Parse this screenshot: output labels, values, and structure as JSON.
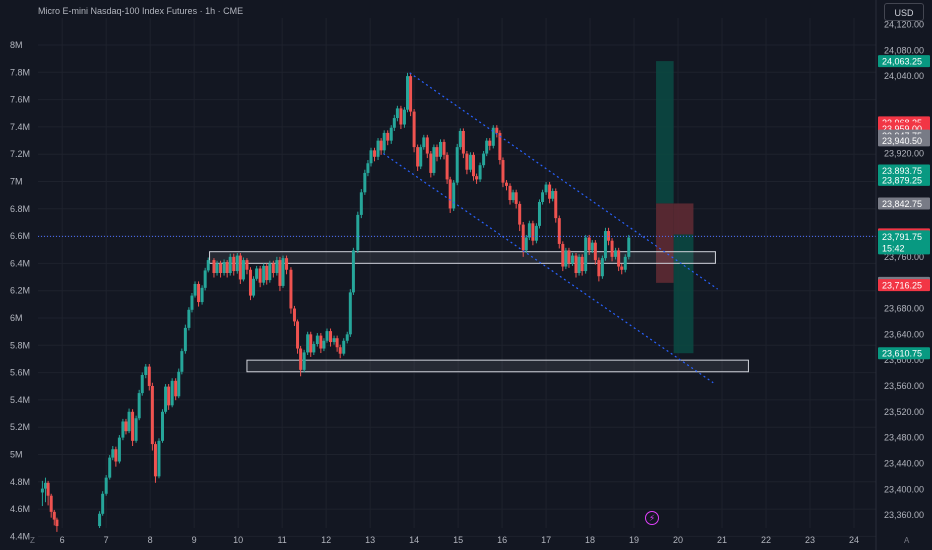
{
  "header": {
    "title": "Micro E-mini Nasdaq-100 Index Futures · 1h · CME",
    "currency": "USD",
    "corner_left": "Z",
    "corner_right": "A"
  },
  "colors": {
    "background": "#131722",
    "grid": "#1e222d",
    "up": "#26a69a",
    "down": "#ef5350",
    "channel": "#2962ff",
    "zone_border": "#d1d4dc",
    "label_green": "#089981",
    "label_red": "#f23645",
    "label_gray": "#787b86",
    "last_price_line": "#4c6fff"
  },
  "chart_data": {
    "type": "candlestick",
    "title": "Micro E-mini Nasdaq-100 Index Futures · 1h · CME",
    "x_ticks": [
      "6",
      "7",
      "8",
      "9",
      "10",
      "11",
      "12",
      "13",
      "14",
      "15",
      "16",
      "17",
      "18",
      "19",
      "20",
      "21",
      "22",
      "23",
      "24"
    ],
    "x_range": [
      5.45,
      24.5
    ],
    "left_axis_ticks": [
      "8M",
      "7.8M",
      "7.6M",
      "7.4M",
      "7.2M",
      "7M",
      "6.8M",
      "6.6M",
      "6.4M",
      "6.2M",
      "6M",
      "5.8M",
      "5.6M",
      "5.4M",
      "5.2M",
      "5M",
      "4.8M",
      "4.6M",
      "4.4M"
    ],
    "price_axis_ticks": [
      "24,120.00",
      "24,080.00",
      "24,040.00",
      "23,920.00",
      "23,760.00",
      "23,680.00",
      "23,640.00",
      "23,600.00",
      "23,560.00",
      "23,520.00",
      "23,480.00",
      "23,440.00",
      "23,400.00",
      "23,360.00"
    ],
    "price_range": [
      23340,
      24130
    ],
    "price_labels": [
      {
        "text": "24,063.25",
        "price": 24063.25,
        "kind": "green"
      },
      {
        "text": "23,968.25",
        "price": 23968.25,
        "kind": "red"
      },
      {
        "text": "23,959.00",
        "price": 23959.0,
        "kind": "red"
      },
      {
        "text": "23,947.75",
        "price": 23947.75,
        "kind": "gray"
      },
      {
        "text": "23,940.50",
        "price": 23940.5,
        "kind": "gray"
      },
      {
        "text": "23,893.75",
        "price": 23893.75,
        "kind": "green"
      },
      {
        "text": "23,879.25",
        "price": 23879.25,
        "kind": "green"
      },
      {
        "text": "23,842.75",
        "price": 23842.75,
        "kind": "gray"
      },
      {
        "text": "23,794.75",
        "price": 23794.75,
        "kind": "red"
      },
      {
        "text": "23,791.75",
        "price": 23791.75,
        "kind": "green",
        "sub": "15:42"
      },
      {
        "text": "23,719.75",
        "price": 23719.75,
        "kind": "gray"
      },
      {
        "text": "23,716.25",
        "price": 23716.25,
        "kind": "red"
      },
      {
        "text": "23,610.75",
        "price": 23610.75,
        "kind": "green"
      }
    ],
    "candles": [
      [
        5.55,
        23395,
        23401,
        23374,
        23413
      ],
      [
        5.62,
        23401,
        23410,
        23380,
        23418
      ],
      [
        5.68,
        23410,
        23390,
        23375,
        23413
      ],
      [
        5.75,
        23390,
        23365,
        23356,
        23393
      ],
      [
        5.82,
        23365,
        23353,
        23344,
        23368
      ],
      [
        5.88,
        23353,
        23343,
        23334,
        23356
      ],
      [
        6.85,
        23343,
        23362,
        23340,
        23366
      ],
      [
        6.92,
        23362,
        23393,
        23359,
        23397
      ],
      [
        7.0,
        23393,
        23418,
        23390,
        23422
      ],
      [
        7.08,
        23418,
        23449,
        23415,
        23453
      ],
      [
        7.15,
        23449,
        23462,
        23445,
        23467
      ],
      [
        7.22,
        23462,
        23443,
        23435,
        23466
      ],
      [
        7.3,
        23443,
        23480,
        23440,
        23484
      ],
      [
        7.38,
        23480,
        23505,
        23476,
        23509
      ],
      [
        7.45,
        23505,
        23490,
        23485,
        23509
      ],
      [
        7.52,
        23490,
        23520,
        23487,
        23525
      ],
      [
        7.6,
        23520,
        23475,
        23467,
        23524
      ],
      [
        7.68,
        23475,
        23510,
        23472,
        23514
      ],
      [
        7.75,
        23510,
        23549,
        23507,
        23554
      ],
      [
        7.82,
        23549,
        23577,
        23545,
        23581
      ],
      [
        7.9,
        23577,
        23590,
        23572,
        23594
      ],
      [
        7.98,
        23590,
        23560,
        23553,
        23594
      ],
      [
        8.05,
        23560,
        23470,
        23460,
        23565
      ],
      [
        8.12,
        23470,
        23420,
        23410,
        23474
      ],
      [
        8.2,
        23420,
        23475,
        23417,
        23479
      ],
      [
        8.28,
        23475,
        23520,
        23472,
        23524
      ],
      [
        8.35,
        23520,
        23559,
        23517,
        23563
      ],
      [
        8.42,
        23559,
        23530,
        23523,
        23563
      ],
      [
        8.5,
        23530,
        23568,
        23527,
        23572
      ],
      [
        8.58,
        23568,
        23544,
        23538,
        23572
      ],
      [
        8.65,
        23544,
        23582,
        23541,
        23587
      ],
      [
        8.72,
        23582,
        23614,
        23578,
        23618
      ],
      [
        8.8,
        23614,
        23650,
        23610,
        23655
      ],
      [
        8.88,
        23650,
        23678,
        23646,
        23682
      ],
      [
        8.95,
        23678,
        23700,
        23674,
        23704
      ],
      [
        9.02,
        23700,
        23718,
        23697,
        23722
      ],
      [
        9.1,
        23718,
        23690,
        23683,
        23722
      ],
      [
        9.18,
        23690,
        23712,
        23686,
        23716
      ],
      [
        9.25,
        23712,
        23739,
        23708,
        23743
      ],
      [
        9.32,
        23739,
        23755,
        23736,
        23759
      ],
      [
        9.45,
        23755,
        23735,
        23728,
        23758
      ],
      [
        9.52,
        23735,
        23750,
        23731,
        23754
      ],
      [
        9.6,
        23750,
        23735,
        23728,
        23754
      ],
      [
        9.68,
        23735,
        23752,
        23731,
        23756
      ],
      [
        9.75,
        23752,
        23735,
        23728,
        23755
      ],
      [
        9.82,
        23735,
        23760,
        23731,
        23765
      ],
      [
        9.9,
        23760,
        23738,
        23731,
        23765
      ],
      [
        9.98,
        23738,
        23762,
        23734,
        23766
      ],
      [
        10.05,
        23762,
        23725,
        23718,
        23766
      ],
      [
        10.12,
        23725,
        23755,
        23722,
        23759
      ],
      [
        10.2,
        23755,
        23740,
        23733,
        23758
      ],
      [
        10.28,
        23740,
        23700,
        23693,
        23744
      ],
      [
        10.35,
        23700,
        23726,
        23697,
        23730
      ],
      [
        10.42,
        23726,
        23742,
        23723,
        23746
      ],
      [
        10.5,
        23742,
        23720,
        23713,
        23746
      ],
      [
        10.58,
        23720,
        23746,
        23716,
        23750
      ],
      [
        10.65,
        23746,
        23724,
        23717,
        23750
      ],
      [
        10.72,
        23724,
        23750,
        23720,
        23754
      ],
      [
        10.8,
        23750,
        23735,
        23728,
        23754
      ],
      [
        10.88,
        23735,
        23755,
        23731,
        23760
      ],
      [
        10.95,
        23755,
        23715,
        23707,
        23760
      ],
      [
        11.02,
        23715,
        23758,
        23712,
        23762
      ],
      [
        11.1,
        23758,
        23740,
        23733,
        23762
      ],
      [
        11.2,
        23740,
        23680,
        23672,
        23744
      ],
      [
        11.28,
        23680,
        23660,
        23653,
        23684
      ],
      [
        11.35,
        23660,
        23618,
        23610,
        23663
      ],
      [
        11.42,
        23618,
        23585,
        23575,
        23622
      ],
      [
        11.5,
        23585,
        23612,
        23581,
        23616
      ],
      [
        11.58,
        23612,
        23640,
        23608,
        23644
      ],
      [
        11.65,
        23640,
        23612,
        23605,
        23644
      ],
      [
        11.72,
        23612,
        23625,
        23608,
        23629
      ],
      [
        11.8,
        23625,
        23638,
        23621,
        23642
      ],
      [
        11.88,
        23638,
        23618,
        23611,
        23642
      ],
      [
        11.95,
        23618,
        23630,
        23614,
        23634
      ],
      [
        12.02,
        23630,
        23645,
        23627,
        23649
      ],
      [
        12.1,
        23645,
        23628,
        23621,
        23649
      ],
      [
        12.18,
        23628,
        23634,
        23624,
        23638
      ],
      [
        12.25,
        23634,
        23620,
        23613,
        23638
      ],
      [
        12.32,
        23620,
        23610,
        23603,
        23624
      ],
      [
        12.4,
        23610,
        23630,
        23607,
        23634
      ],
      [
        12.48,
        23630,
        23640,
        23626,
        23644
      ],
      [
        12.55,
        23640,
        23705,
        23636,
        23710
      ],
      [
        12.62,
        23705,
        23770,
        23701,
        23774
      ],
      [
        12.72,
        23770,
        23825,
        23766,
        23830
      ],
      [
        12.8,
        23825,
        23860,
        23820,
        23865
      ],
      [
        12.88,
        23860,
        23890,
        23856,
        23895
      ],
      [
        12.95,
        23890,
        23905,
        23885,
        23910
      ],
      [
        13.02,
        23905,
        23925,
        23900,
        23929
      ],
      [
        13.1,
        23925,
        23915,
        23908,
        23929
      ],
      [
        13.18,
        23915,
        23940,
        23910,
        23944
      ],
      [
        13.25,
        23940,
        23925,
        23918,
        23944
      ],
      [
        13.32,
        23925,
        23952,
        23920,
        23956
      ],
      [
        13.4,
        23952,
        23940,
        23933,
        23956
      ],
      [
        13.48,
        23940,
        23960,
        23935,
        23964
      ],
      [
        13.55,
        23960,
        23975,
        23955,
        23980
      ],
      [
        13.62,
        23975,
        23990,
        23970,
        23994
      ],
      [
        13.7,
        23990,
        23965,
        23958,
        23994
      ],
      [
        13.78,
        23965,
        23988,
        23960,
        23992
      ],
      [
        13.85,
        23988,
        24040,
        23984,
        24045
      ],
      [
        13.92,
        24040,
        23985,
        23978,
        24045
      ],
      [
        14.0,
        23985,
        23930,
        23922,
        23989
      ],
      [
        14.08,
        23930,
        23900,
        23893,
        23934
      ],
      [
        14.15,
        23900,
        23930,
        23896,
        23934
      ],
      [
        14.22,
        23930,
        23945,
        23926,
        23949
      ],
      [
        14.3,
        23945,
        23920,
        23913,
        23949
      ],
      [
        14.38,
        23920,
        23890,
        23883,
        23924
      ],
      [
        14.45,
        23890,
        23930,
        23886,
        23934
      ],
      [
        14.52,
        23930,
        23915,
        23908,
        23934
      ],
      [
        14.6,
        23915,
        23938,
        23911,
        23942
      ],
      [
        14.68,
        23938,
        23918,
        23911,
        23942
      ],
      [
        14.75,
        23918,
        23880,
        23873,
        23922
      ],
      [
        14.82,
        23880,
        23835,
        23828,
        23884
      ],
      [
        14.9,
        23835,
        23875,
        23831,
        23879
      ],
      [
        14.98,
        23875,
        23930,
        23871,
        23935
      ],
      [
        15.05,
        23930,
        23955,
        23926,
        23959
      ],
      [
        15.12,
        23955,
        23920,
        23913,
        23959
      ],
      [
        15.2,
        23920,
        23895,
        23888,
        23924
      ],
      [
        15.28,
        23895,
        23918,
        23891,
        23922
      ],
      [
        15.35,
        23918,
        23885,
        23878,
        23922
      ],
      [
        15.42,
        23885,
        23880,
        23873,
        23889
      ],
      [
        15.5,
        23880,
        23902,
        23876,
        23906
      ],
      [
        15.58,
        23902,
        23920,
        23898,
        23924
      ],
      [
        15.65,
        23920,
        23940,
        23916,
        23944
      ],
      [
        15.72,
        23940,
        23932,
        23925,
        23944
      ],
      [
        15.8,
        23932,
        23960,
        23928,
        23964
      ],
      [
        15.88,
        23960,
        23952,
        23945,
        23964
      ],
      [
        15.95,
        23952,
        23910,
        23903,
        23956
      ],
      [
        16.02,
        23910,
        23875,
        23868,
        23914
      ],
      [
        16.1,
        23875,
        23870,
        23863,
        23879
      ],
      [
        16.18,
        23870,
        23848,
        23841,
        23874
      ],
      [
        16.25,
        23848,
        23860,
        23844,
        23864
      ],
      [
        16.32,
        23860,
        23842,
        23835,
        23864
      ],
      [
        16.4,
        23842,
        23810,
        23800,
        23846
      ],
      [
        16.48,
        23810,
        23770,
        23760,
        23814
      ],
      [
        16.55,
        23770,
        23790,
        23766,
        23794
      ],
      [
        16.62,
        23790,
        23812,
        23786,
        23816
      ],
      [
        16.7,
        23812,
        23785,
        23778,
        23816
      ],
      [
        16.78,
        23785,
        23808,
        23781,
        23812
      ],
      [
        16.85,
        23808,
        23845,
        23804,
        23849
      ],
      [
        16.92,
        23845,
        23860,
        23841,
        23864
      ],
      [
        17.0,
        23860,
        23872,
        23856,
        23876
      ],
      [
        17.08,
        23872,
        23850,
        23843,
        23876
      ],
      [
        17.15,
        23850,
        23862,
        23846,
        23866
      ],
      [
        17.22,
        23862,
        23820,
        23813,
        23866
      ],
      [
        17.3,
        23820,
        23780,
        23773,
        23824
      ],
      [
        17.38,
        23780,
        23745,
        23738,
        23784
      ],
      [
        17.45,
        23745,
        23770,
        23741,
        23774
      ],
      [
        17.52,
        23770,
        23750,
        23743,
        23774
      ],
      [
        17.6,
        23750,
        23762,
        23746,
        23766
      ],
      [
        17.68,
        23762,
        23735,
        23728,
        23766
      ],
      [
        17.75,
        23735,
        23760,
        23731,
        23764
      ],
      [
        17.82,
        23760,
        23738,
        23731,
        23764
      ],
      [
        17.9,
        23738,
        23790,
        23734,
        23794
      ],
      [
        17.98,
        23790,
        23770,
        23763,
        23794
      ],
      [
        18.05,
        23770,
        23782,
        23766,
        23786
      ],
      [
        18.12,
        23782,
        23755,
        23748,
        23786
      ],
      [
        18.2,
        23755,
        23730,
        23722,
        23759
      ],
      [
        18.28,
        23730,
        23758,
        23726,
        23762
      ],
      [
        18.35,
        23758,
        23800,
        23754,
        23805
      ],
      [
        18.42,
        23800,
        23785,
        23778,
        23805
      ],
      [
        18.5,
        23785,
        23760,
        23753,
        23789
      ],
      [
        18.58,
        23760,
        23770,
        23756,
        23774
      ],
      [
        18.65,
        23770,
        23745,
        23738,
        23774
      ],
      [
        18.72,
        23745,
        23740,
        23733,
        23749
      ],
      [
        18.8,
        23740,
        23760,
        23736,
        23764
      ],
      [
        18.88,
        23760,
        23790,
        23756,
        23794
      ]
    ],
    "channel_lines": [
      {
        "x1": 13.9,
        "p1": 24045,
        "x2": 20.9,
        "p2": 23710
      },
      {
        "x1": 13.3,
        "p1": 23920,
        "x2": 20.8,
        "p2": 23565
      }
    ],
    "zones": [
      {
        "x1": 9.35,
        "x2": 20.85,
        "p_top": 23768,
        "p_bottom": 23750
      },
      {
        "x1": 10.2,
        "x2": 21.6,
        "p_top": 23600,
        "p_bottom": 23582
      }
    ],
    "positions": [
      {
        "x1": 19.5,
        "x2": 19.9,
        "entry": 23842.75,
        "target": 24063.25,
        "stop": 23719.75,
        "profit_color": "#0a4a43",
        "loss_color": "#5e2a33"
      },
      {
        "x1": 19.9,
        "x2": 20.35,
        "entry": 23794.75,
        "target": 23610.75,
        "stop": 23842.75,
        "profit_color": "#0a4a43",
        "loss_color": "#5e2a33"
      }
    ],
    "last_price": 23791.75,
    "grid": true
  }
}
